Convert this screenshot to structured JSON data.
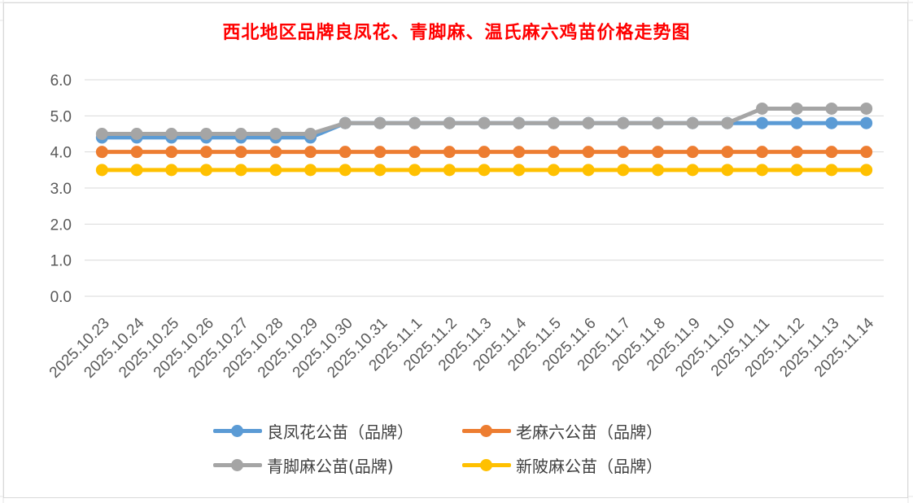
{
  "chart_data": {
    "type": "line",
    "title": "西北地区品牌良凤花、青脚麻、温氏麻六鸡苗价格走势图",
    "categories": [
      "2025.10.23",
      "2025.10.24",
      "2025.10.25",
      "2025.10.26",
      "2025.10.27",
      "2025.10.28",
      "2025.10.29",
      "2025.10.30",
      "2025.10.31",
      "2025.11.1",
      "2025.11.2",
      "2025.11.3",
      "2025.11.4",
      "2025.11.5",
      "2025.11.6",
      "2025.11.7",
      "2025.11.8",
      "2025.11.9",
      "2025.11.10",
      "2025.11.11",
      "2025.11.12",
      "2025.11.13",
      "2025.11.14"
    ],
    "ylim": [
      0,
      6
    ],
    "yticks": [
      "0.0",
      "1.0",
      "2.0",
      "3.0",
      "4.0",
      "5.0",
      "6.0"
    ],
    "grid": true,
    "legend_position": "bottom",
    "series": [
      {
        "name": "良凤花公苗（品牌）",
        "color": "#5b9bd5",
        "values": [
          4.4,
          4.4,
          4.4,
          4.4,
          4.4,
          4.4,
          4.4,
          4.8,
          4.8,
          4.8,
          4.8,
          4.8,
          4.8,
          4.8,
          4.8,
          4.8,
          4.8,
          4.8,
          4.8,
          4.8,
          4.8,
          4.8,
          4.8
        ]
      },
      {
        "name": "老麻六公苗（品牌）",
        "color": "#ed7d31",
        "values": [
          4.0,
          4.0,
          4.0,
          4.0,
          4.0,
          4.0,
          4.0,
          4.0,
          4.0,
          4.0,
          4.0,
          4.0,
          4.0,
          4.0,
          4.0,
          4.0,
          4.0,
          4.0,
          4.0,
          4.0,
          4.0,
          4.0,
          4.0
        ]
      },
      {
        "name": "青脚麻公苗(品牌)",
        "color": "#a5a5a5",
        "values": [
          4.5,
          4.5,
          4.5,
          4.5,
          4.5,
          4.5,
          4.5,
          4.8,
          4.8,
          4.8,
          4.8,
          4.8,
          4.8,
          4.8,
          4.8,
          4.8,
          4.8,
          4.8,
          4.8,
          5.2,
          5.2,
          5.2,
          5.2
        ]
      },
      {
        "name": "新陂麻公苗（品牌）",
        "color": "#ffc000",
        "values": [
          3.5,
          3.5,
          3.5,
          3.5,
          3.5,
          3.5,
          3.5,
          3.5,
          3.5,
          3.5,
          3.5,
          3.5,
          3.5,
          3.5,
          3.5,
          3.5,
          3.5,
          3.5,
          3.5,
          3.5,
          3.5,
          3.5,
          3.5
        ]
      }
    ]
  }
}
